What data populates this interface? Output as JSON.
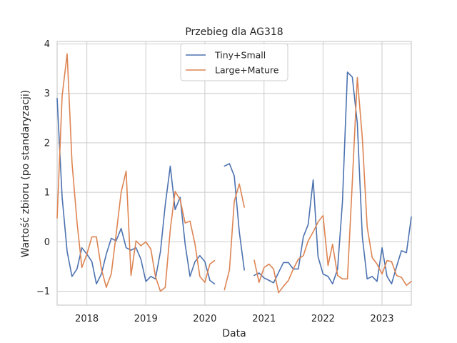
{
  "chart_data": {
    "type": "line",
    "title": "Przebieg dla AG318",
    "xlabel": "Data",
    "ylabel": "Wartość zbioru (po standaryzacji)",
    "xlim": [
      "2017-07-01",
      "2023-07-01"
    ],
    "ylim": [
      -1.28,
      4.05
    ],
    "x_ticks": [
      {
        "label": "2018",
        "date": "2018-01-01"
      },
      {
        "label": "2019",
        "date": "2019-01-01"
      },
      {
        "label": "2020",
        "date": "2020-01-01"
      },
      {
        "label": "2021",
        "date": "2021-01-01"
      },
      {
        "label": "2022",
        "date": "2022-01-01"
      },
      {
        "label": "2023",
        "date": "2023-01-01"
      }
    ],
    "y_ticks": [
      {
        "label": "4",
        "value": 4
      },
      {
        "label": "3",
        "value": 3
      },
      {
        "label": "2",
        "value": 2
      },
      {
        "label": "1",
        "value": 1
      },
      {
        "label": "0",
        "value": 0
      },
      {
        "label": "−1",
        "value": -1
      }
    ],
    "grid": true,
    "legend": {
      "placement": "top-center"
    },
    "series": [
      {
        "name": "Tiny+Small",
        "color": "#4c72b0",
        "points": [
          [
            "2017-07-01",
            2.9
          ],
          [
            "2017-08-01",
            0.9
          ],
          [
            "2017-09-01",
            -0.2
          ],
          [
            "2017-10-01",
            -0.7
          ],
          [
            "2017-11-01",
            -0.55
          ],
          [
            "2017-12-01",
            -0.12
          ],
          [
            "2018-01-01",
            -0.25
          ],
          [
            "2018-02-01",
            -0.4
          ],
          [
            "2018-03-01",
            -0.85
          ],
          [
            "2018-04-01",
            -0.65
          ],
          [
            "2018-05-01",
            -0.25
          ],
          [
            "2018-06-01",
            0.07
          ],
          [
            "2018-07-01",
            0.02
          ],
          [
            "2018-08-01",
            0.27
          ],
          [
            "2018-09-01",
            -0.12
          ],
          [
            "2018-10-01",
            -0.17
          ],
          [
            "2018-11-01",
            -0.12
          ],
          [
            "2018-12-01",
            -0.35
          ],
          [
            "2019-01-01",
            -0.8
          ],
          [
            "2019-02-01",
            -0.7
          ],
          [
            "2019-03-01",
            -0.75
          ],
          [
            "2019-04-01",
            -0.2
          ],
          [
            "2019-05-01",
            0.75
          ],
          [
            "2019-06-01",
            1.53
          ],
          [
            "2019-07-01",
            0.65
          ],
          [
            "2019-08-01",
            0.9
          ],
          [
            "2019-09-01",
            -0.05
          ],
          [
            "2019-10-01",
            -0.7
          ],
          [
            "2019-11-01",
            -0.4
          ],
          [
            "2019-12-01",
            -0.28
          ],
          [
            "2020-01-01",
            -0.4
          ],
          [
            "2020-02-01",
            -0.78
          ],
          [
            "2020-03-01",
            -0.85
          ],
          [
            "2020-04-01",
            null
          ],
          [
            "2020-05-01",
            1.53
          ],
          [
            "2020-06-01",
            1.58
          ],
          [
            "2020-07-01",
            1.33
          ],
          [
            "2020-08-01",
            0.2
          ],
          [
            "2020-09-01",
            -0.57
          ],
          [
            "2020-10-01",
            null
          ],
          [
            "2020-11-01",
            -0.68
          ],
          [
            "2020-12-01",
            -0.63
          ],
          [
            "2021-01-01",
            -0.73
          ],
          [
            "2021-02-01",
            -0.78
          ],
          [
            "2021-03-01",
            -0.83
          ],
          [
            "2021-04-01",
            -0.62
          ],
          [
            "2021-05-01",
            -0.42
          ],
          [
            "2021-06-01",
            -0.42
          ],
          [
            "2021-07-01",
            -0.55
          ],
          [
            "2021-08-01",
            -0.55
          ],
          [
            "2021-09-01",
            0.1
          ],
          [
            "2021-10-01",
            0.35
          ],
          [
            "2021-11-01",
            1.25
          ],
          [
            "2021-12-01",
            -0.3
          ],
          [
            "2022-01-01",
            -0.65
          ],
          [
            "2022-02-01",
            -0.7
          ],
          [
            "2022-03-01",
            -0.85
          ],
          [
            "2022-04-01",
            -0.55
          ],
          [
            "2022-05-01",
            0.8
          ],
          [
            "2022-06-01",
            3.43
          ],
          [
            "2022-07-01",
            3.33
          ],
          [
            "2022-08-01",
            2.4
          ],
          [
            "2022-09-01",
            0.1
          ],
          [
            "2022-10-01",
            -0.75
          ],
          [
            "2022-11-01",
            -0.7
          ],
          [
            "2022-12-01",
            -0.8
          ],
          [
            "2023-01-01",
            -0.12
          ],
          [
            "2023-02-01",
            -0.7
          ],
          [
            "2023-03-01",
            -0.85
          ],
          [
            "2023-04-01",
            -0.5
          ],
          [
            "2023-05-01",
            -0.18
          ],
          [
            "2023-06-01",
            -0.22
          ],
          [
            "2023-07-01",
            0.5
          ]
        ]
      },
      {
        "name": "Large+Mature",
        "color": "#dd8452",
        "points": [
          [
            "2017-07-01",
            0.48
          ],
          [
            "2017-08-01",
            2.95
          ],
          [
            "2017-09-01",
            3.8
          ],
          [
            "2017-10-01",
            1.6
          ],
          [
            "2017-11-01",
            0.4
          ],
          [
            "2017-12-01",
            -0.52
          ],
          [
            "2018-01-01",
            -0.25
          ],
          [
            "2018-02-01",
            0.1
          ],
          [
            "2018-03-01",
            0.1
          ],
          [
            "2018-04-01",
            -0.55
          ],
          [
            "2018-05-01",
            -0.92
          ],
          [
            "2018-06-01",
            -0.65
          ],
          [
            "2018-07-01",
            0.15
          ],
          [
            "2018-08-01",
            1.0
          ],
          [
            "2018-09-01",
            1.43
          ],
          [
            "2018-10-01",
            -0.68
          ],
          [
            "2018-11-01",
            0.02
          ],
          [
            "2018-12-01",
            -0.08
          ],
          [
            "2019-01-01",
            0.0
          ],
          [
            "2019-02-01",
            -0.15
          ],
          [
            "2019-03-01",
            -0.7
          ],
          [
            "2019-04-01",
            -1.0
          ],
          [
            "2019-05-01",
            -0.92
          ],
          [
            "2019-06-01",
            0.25
          ],
          [
            "2019-07-01",
            1.02
          ],
          [
            "2019-08-01",
            0.85
          ],
          [
            "2019-09-01",
            0.38
          ],
          [
            "2019-10-01",
            0.42
          ],
          [
            "2019-11-01",
            -0.05
          ],
          [
            "2019-12-01",
            -0.7
          ],
          [
            "2020-01-01",
            -0.82
          ],
          [
            "2020-02-01",
            -0.45
          ],
          [
            "2020-03-01",
            -0.38
          ],
          [
            "2020-04-01",
            null
          ],
          [
            "2020-05-01",
            -0.97
          ],
          [
            "2020-06-01",
            -0.57
          ],
          [
            "2020-07-01",
            0.82
          ],
          [
            "2020-08-01",
            1.17
          ],
          [
            "2020-09-01",
            0.7
          ],
          [
            "2020-10-01",
            null
          ],
          [
            "2020-11-01",
            -0.37
          ],
          [
            "2020-12-01",
            -0.82
          ],
          [
            "2021-01-01",
            -0.52
          ],
          [
            "2021-02-01",
            -0.45
          ],
          [
            "2021-03-01",
            -0.55
          ],
          [
            "2021-04-01",
            -1.03
          ],
          [
            "2021-05-01",
            -0.9
          ],
          [
            "2021-06-01",
            -0.78
          ],
          [
            "2021-07-01",
            -0.55
          ],
          [
            "2021-08-01",
            -0.35
          ],
          [
            "2021-09-01",
            -0.28
          ],
          [
            "2021-10-01",
            0.02
          ],
          [
            "2021-11-01",
            0.2
          ],
          [
            "2021-12-01",
            0.4
          ],
          [
            "2022-01-01",
            0.53
          ],
          [
            "2022-02-01",
            -0.48
          ],
          [
            "2022-03-01",
            -0.05
          ],
          [
            "2022-04-01",
            -0.68
          ],
          [
            "2022-05-01",
            -0.75
          ],
          [
            "2022-06-01",
            -0.75
          ],
          [
            "2022-07-01",
            1.2
          ],
          [
            "2022-08-01",
            3.32
          ],
          [
            "2022-09-01",
            2.1
          ],
          [
            "2022-10-01",
            0.3
          ],
          [
            "2022-11-01",
            -0.32
          ],
          [
            "2022-12-01",
            -0.45
          ],
          [
            "2023-01-01",
            -0.65
          ],
          [
            "2023-02-01",
            -0.38
          ],
          [
            "2023-03-01",
            -0.4
          ],
          [
            "2023-04-01",
            -0.68
          ],
          [
            "2023-05-01",
            -0.72
          ],
          [
            "2023-06-01",
            -0.88
          ],
          [
            "2023-07-01",
            -0.8
          ]
        ]
      }
    ]
  }
}
